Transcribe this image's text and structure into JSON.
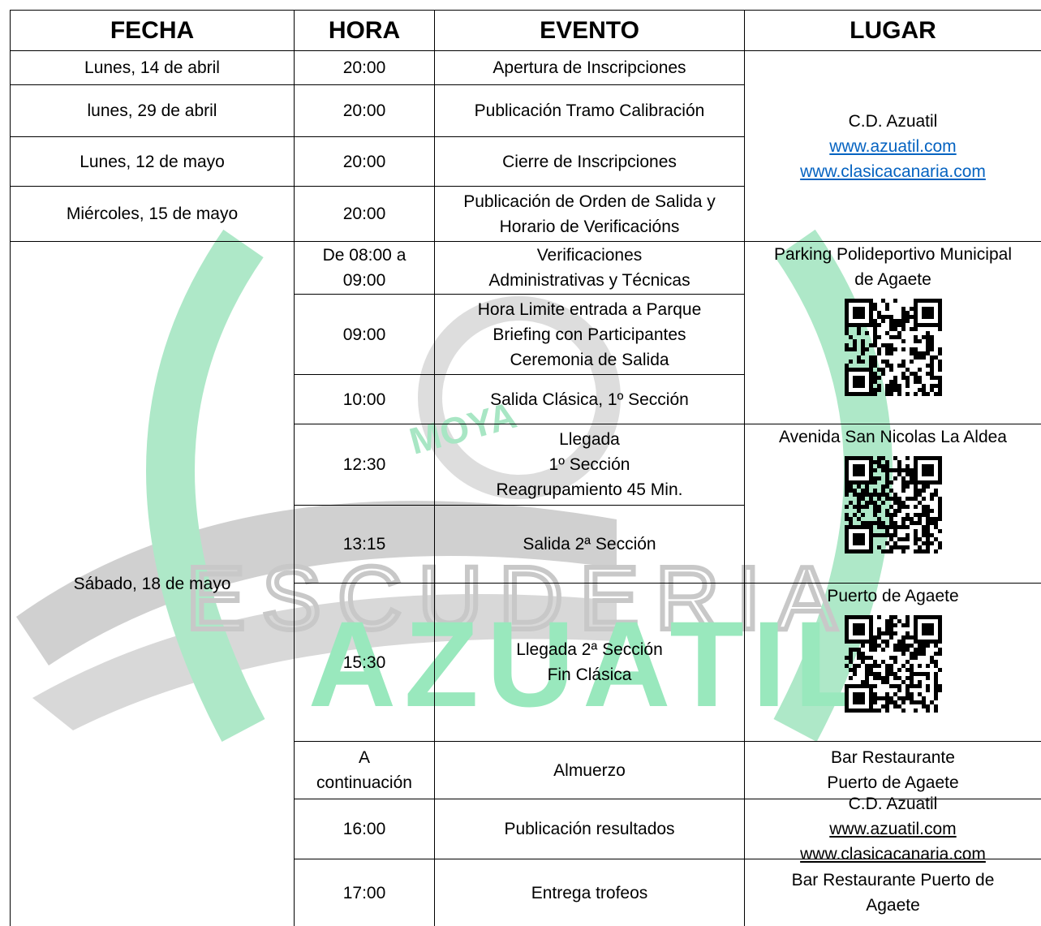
{
  "header": [
    "FECHA",
    "HORA",
    "EVENTO",
    "LUGAR"
  ],
  "watermark": {
    "top": "MOYA",
    "middle": "ESCUDERIA",
    "bottom": "AZUATIL"
  },
  "fecha": [
    [
      "Lunes, 14 de abril"
    ],
    [
      "lunes, 29 de abril"
    ],
    [
      "Lunes, 12 de mayo"
    ],
    [
      "Miércoles, 15 de mayo"
    ],
    [
      "Sábado, 18 de mayo"
    ]
  ],
  "rows": [
    {
      "hora": [
        "20:00"
      ],
      "evento": [
        "Apertura de Inscripciones"
      ]
    },
    {
      "hora": [
        "20:00"
      ],
      "evento": [
        "Publicación Tramo Calibración"
      ]
    },
    {
      "hora": [
        "20:00"
      ],
      "evento": [
        "Cierre de Inscripciones"
      ]
    },
    {
      "hora": [
        "20:00"
      ],
      "evento": [
        "Publicación de Orden de Salida y",
        "Horario de Verificacións"
      ]
    },
    {
      "hora": [
        "De 08:00 a",
        "09:00"
      ],
      "evento": [
        "Verificaciones",
        "Administrativas y Técnicas"
      ]
    },
    {
      "hora": [
        "09:00"
      ],
      "evento": [
        "Hora Limite entrada a Parque",
        "Briefing con Participantes",
        "Ceremonia de Salida"
      ]
    },
    {
      "hora": [
        "10:00"
      ],
      "evento": [
        "Salida Clásica, 1º Sección"
      ]
    },
    {
      "hora": [
        "12:30"
      ],
      "evento": [
        "Llegada",
        "1º Sección",
        "Reagrupamiento 45 Min."
      ]
    },
    {
      "hora": [
        "13:15"
      ],
      "evento": [
        "Salida 2ª Sección"
      ]
    },
    {
      "hora": [
        "15:30"
      ],
      "evento": [
        "Llegada 2ª Sección",
        "Fin Clásica"
      ]
    },
    {
      "hora": [
        "A",
        "continuación"
      ],
      "evento": [
        "Almuerzo"
      ]
    },
    {
      "hora": [
        "16:00"
      ],
      "evento": [
        "Publicación resultados"
      ]
    },
    {
      "hora": [
        "17:00"
      ],
      "evento": [
        "Entrega trofeos"
      ]
    }
  ],
  "lugar": [
    {
      "lines": [
        "C.D. Azuatil"
      ],
      "links": [
        "www.azuatil.com",
        "www.clasicacanaria.com"
      ]
    },
    {
      "lines": [
        "Parking Polideportivo Municipal",
        "de Agaete"
      ]
    },
    {
      "lines": [
        "Avenida San Nicolas La Aldea"
      ]
    },
    {
      "lines": [
        "Puerto de Agaete"
      ]
    },
    {
      "lines": [
        "Bar Restaurante",
        "Puerto de Agaete"
      ]
    },
    {
      "lines": [
        "C.D. Azuatil"
      ],
      "links": [
        "www.azuatil.com",
        "www.clasicacanaria.com"
      ]
    },
    {
      "lines": [
        "Bar Restaurante Puerto de",
        "Agaete"
      ]
    }
  ]
}
